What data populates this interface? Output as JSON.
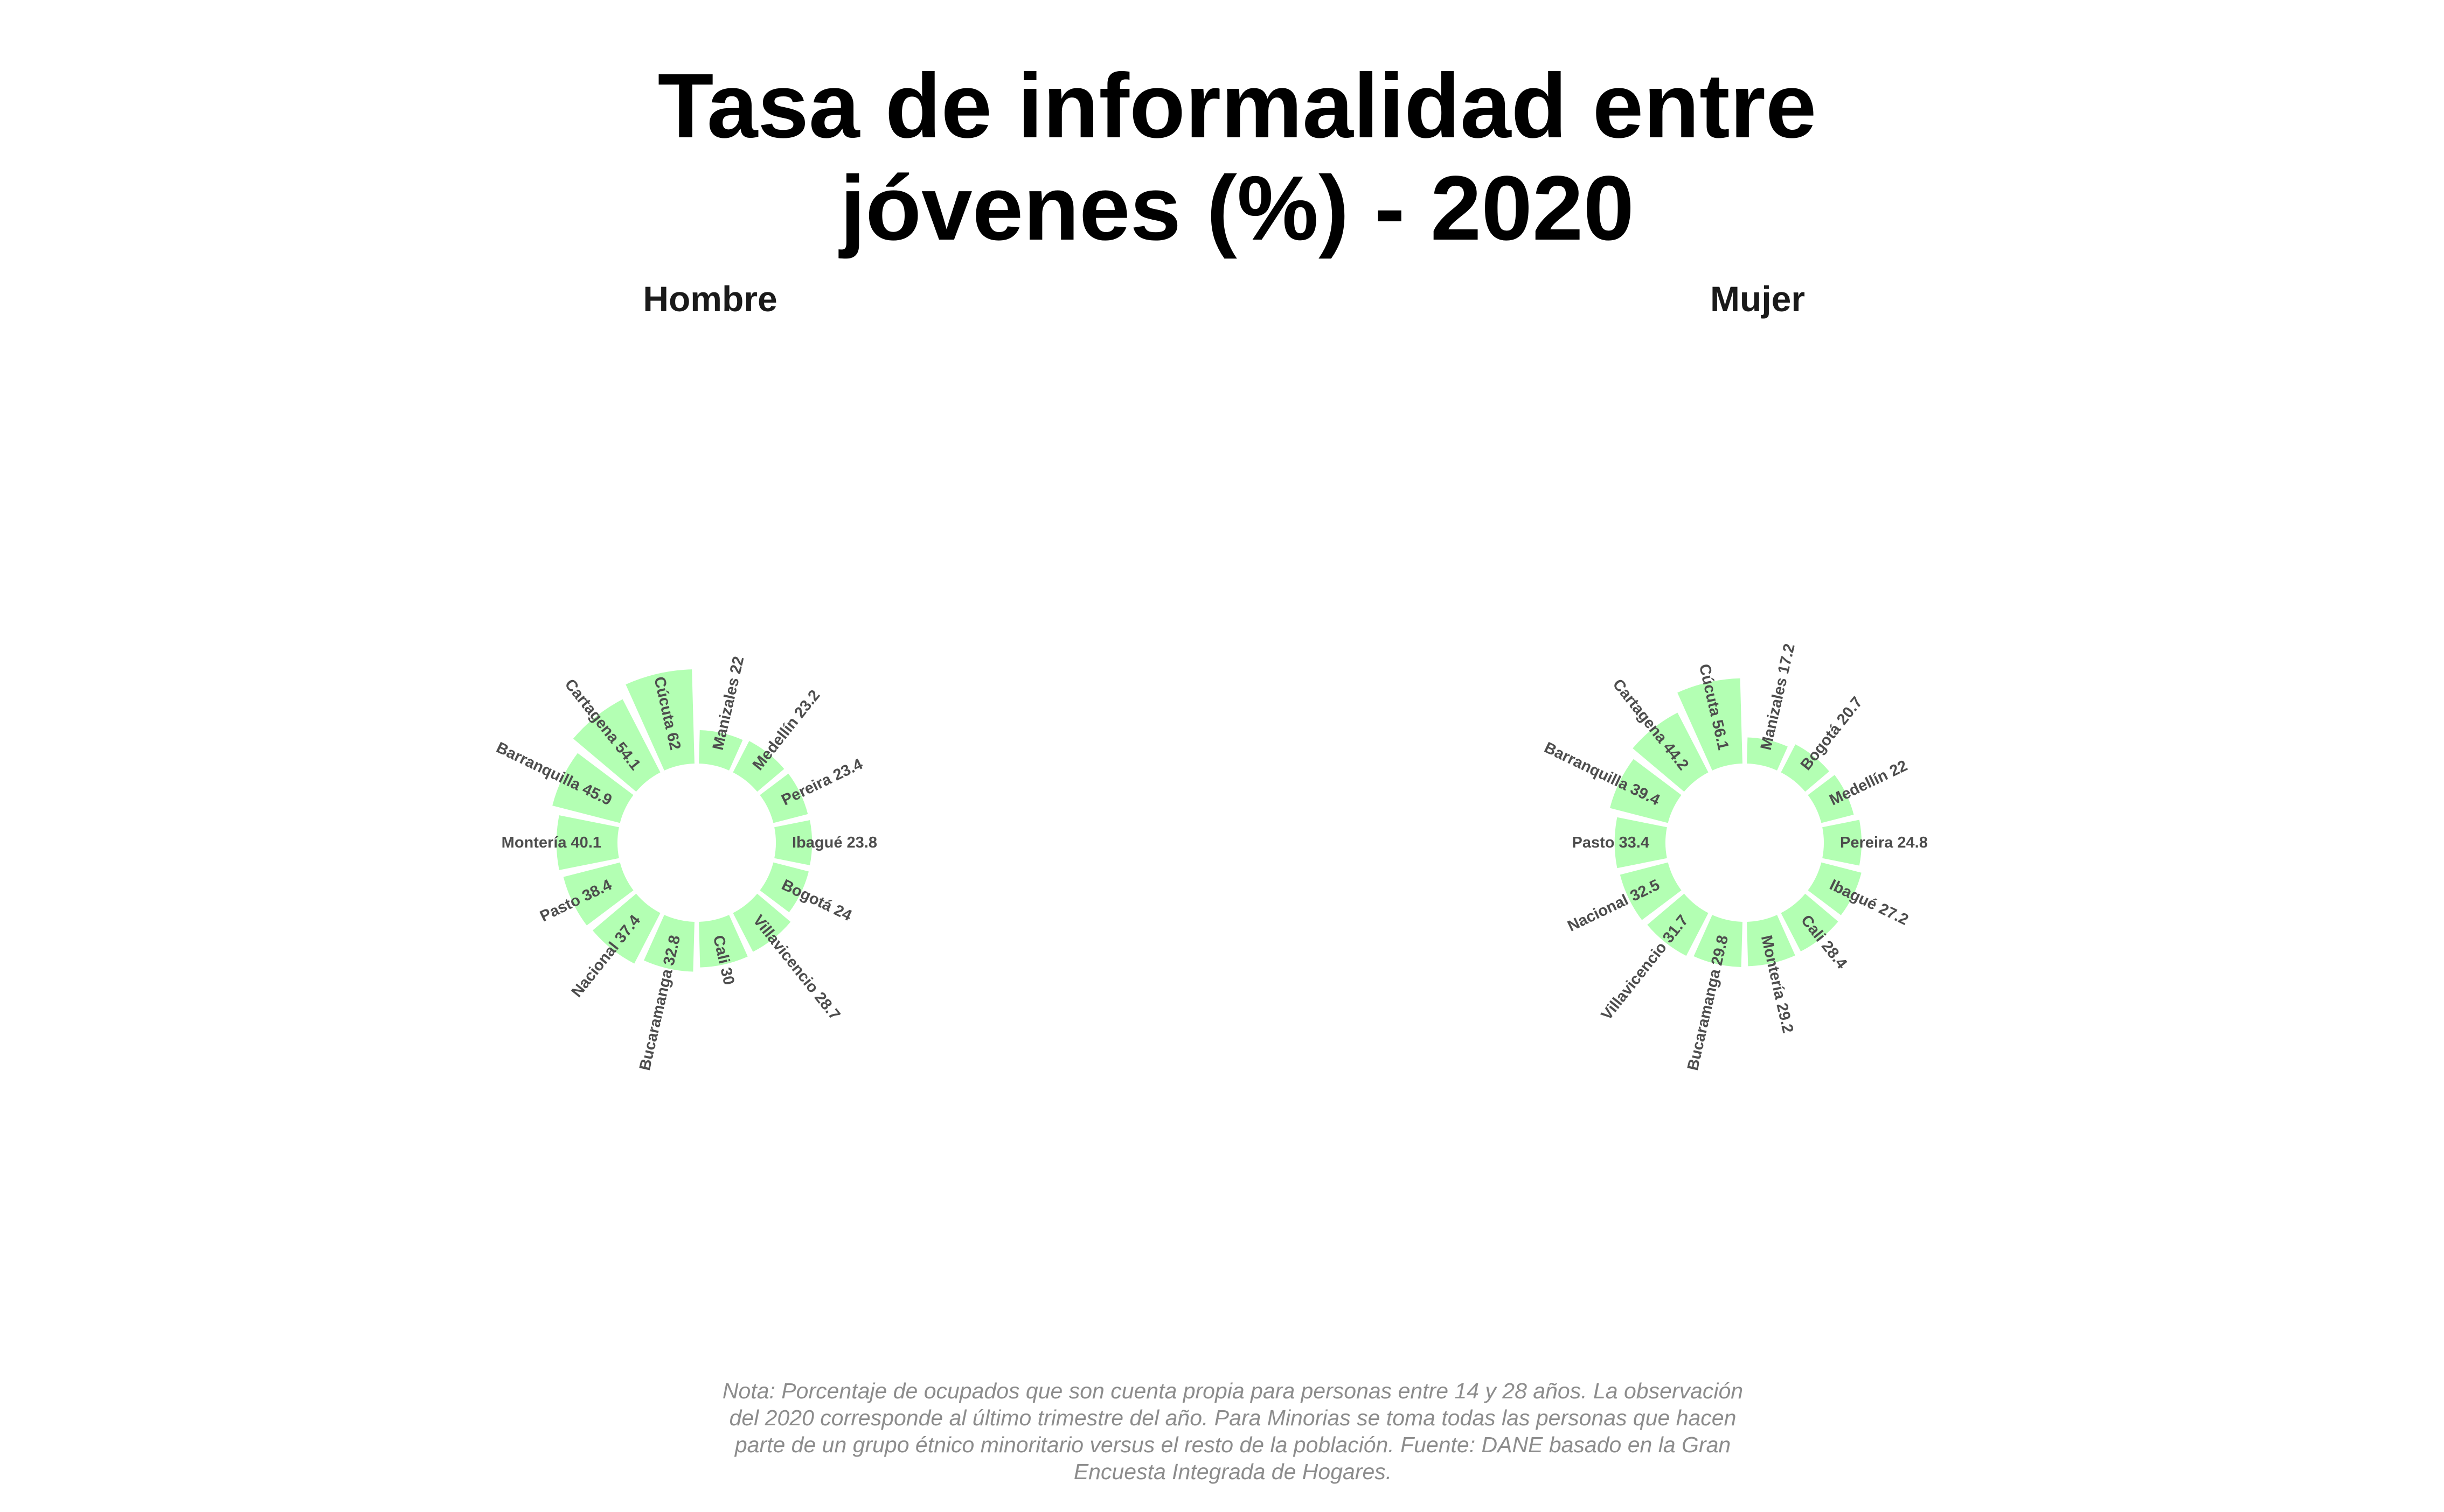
{
  "title_lines": [
    "Tasa de informalidad entre",
    "jóvenes (%) - 2020"
  ],
  "caption_lines": [
    "Nota: Porcentaje de ocupados que son cuenta propia para personas entre 14 y 28 años. La observación",
    "del 2020 corresponde al último trimestre del año. Para Minorias se toma todas las personas que hacen",
    "parte de un grupo étnico minoritario versus el resto de la población. Fuente: DANE basado en la Gran",
    "Encuesta Integrada de Hogares."
  ],
  "colors": {
    "bar": "#b3ffb3",
    "label": "#4d4d4d",
    "title": "#000000",
    "caption": "#8c8c8c"
  },
  "chart_data": [
    {
      "type": "circular-bar",
      "panel": "Hombre",
      "categories": [
        "Manizales",
        "Medellín",
        "Pereira",
        "Ibagué",
        "Bogotá",
        "Villavicencio",
        "Cali",
        "Bucaramanga",
        "Nacional",
        "Pasto",
        "Montería",
        "Barranquilla",
        "Cartagena",
        "Cúcuta"
      ],
      "values": [
        22,
        23.2,
        23.4,
        23.8,
        24,
        28.7,
        30,
        32.8,
        37.4,
        38.4,
        40.1,
        45.9,
        54.1,
        62
      ]
    },
    {
      "type": "circular-bar",
      "panel": "Mujer",
      "categories": [
        "Manizales",
        "Bogotá",
        "Medellín",
        "Pereira",
        "Ibagué",
        "Cali",
        "Montería",
        "Bucaramanga",
        "Villavicencio",
        "Nacional",
        "Pasto",
        "Barranquilla",
        "Cartagena",
        "Cúcuta"
      ],
      "values": [
        17.2,
        20.7,
        22,
        24.8,
        27.2,
        28.4,
        29.2,
        29.8,
        31.7,
        32.5,
        33.4,
        39.4,
        44.2,
        56.1
      ]
    }
  ]
}
